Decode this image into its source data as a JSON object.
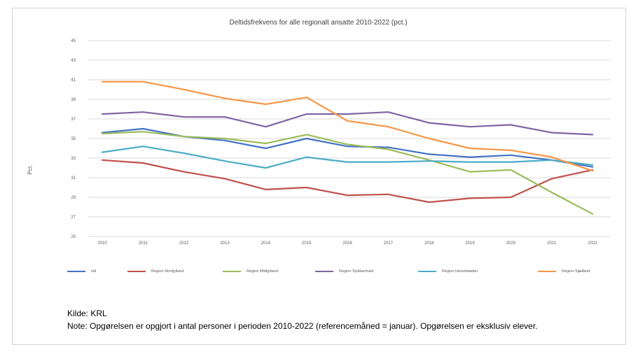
{
  "chart_data": {
    "type": "line",
    "title": "Deltidsfrekvens for alle regionalt ansatte 2010-2022 (pct.)",
    "ylabel": "Pct.",
    "xlabel": "",
    "x": [
      "2010",
      "2011",
      "2012",
      "2013",
      "2014",
      "2015",
      "2016",
      "2017",
      "2018",
      "2019",
      "2020",
      "2021",
      "2022"
    ],
    "y_tick_labels": [
      "25",
      "27",
      "29",
      "31",
      "33",
      "35",
      "37",
      "39",
      "41",
      "43",
      "45"
    ],
    "ylim": [
      25,
      45
    ],
    "grid": true,
    "legend_position": "bottom",
    "series": [
      {
        "name": "Ialt",
        "color": "#4472c4",
        "values": [
          35.6,
          36.0,
          35.2,
          34.8,
          34.0,
          35.0,
          34.2,
          34.1,
          33.4,
          33.1,
          33.3,
          32.8,
          32.1
        ]
      },
      {
        "name": "Region Nordjylland",
        "color": "#c0504d",
        "values": [
          32.8,
          32.5,
          31.6,
          30.9,
          29.8,
          30.0,
          29.2,
          29.3,
          28.5,
          28.9,
          29.0,
          30.9,
          31.8
        ]
      },
      {
        "name": "Region Midtjylland",
        "color": "#9bbb59",
        "values": [
          35.5,
          35.7,
          35.2,
          35.0,
          34.5,
          35.4,
          34.4,
          33.9,
          32.8,
          31.6,
          31.8,
          29.5,
          27.3
        ]
      },
      {
        "name": "Region Syddanmark",
        "color": "#8064a2",
        "values": [
          37.5,
          37.7,
          37.2,
          37.2,
          36.2,
          37.5,
          37.5,
          37.7,
          36.6,
          36.2,
          36.4,
          35.6,
          35.4
        ]
      },
      {
        "name": "Region Hovedstaden",
        "color": "#4bacc6",
        "values": [
          33.6,
          34.2,
          33.5,
          32.7,
          32.0,
          33.1,
          32.6,
          32.6,
          32.7,
          32.6,
          32.6,
          32.8,
          32.3
        ]
      },
      {
        "name": "Region Sjælland",
        "color": "#f79646",
        "values": [
          40.8,
          40.8,
          40.0,
          39.1,
          38.5,
          39.2,
          36.8,
          36.2,
          35.0,
          34.0,
          33.8,
          33.1,
          31.7
        ]
      }
    ]
  },
  "footer": {
    "source": "Kilde: KRL",
    "note": "Note: Opgørelsen er opgjort i antal personer i perioden 2010-2022 (referencemåned = januar). Opgørelsen er eksklusiv elever."
  }
}
